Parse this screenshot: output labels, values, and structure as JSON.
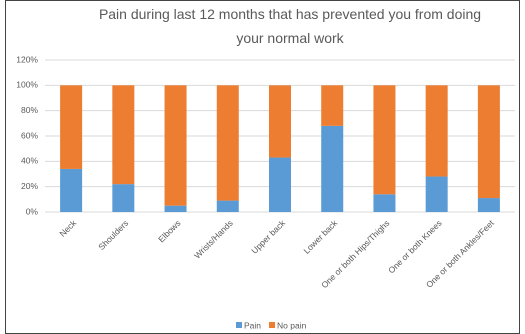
{
  "chart_data": {
    "type": "stacked_bar",
    "title": "Pain during last 12 months that has prevented you from doing your normal work",
    "categories": [
      "Neck",
      "Shoulders",
      "Elbows",
      "Wrists/Hands",
      "Upper back",
      "Lower back",
      "One or both Hips/Thighs",
      "One or both Knees",
      "One or both Ankles/Feet"
    ],
    "series": [
      {
        "name": "Pain",
        "color": "#5b9bd5",
        "values": [
          34,
          22,
          5,
          9,
          43,
          68,
          14,
          28,
          11
        ]
      },
      {
        "name": "No pain",
        "color": "#ed7d31",
        "values": [
          66,
          78,
          95,
          91,
          57,
          32,
          86,
          72,
          89
        ]
      }
    ],
    "ylim": [
      0,
      120
    ],
    "yticks": [
      {
        "value": 0,
        "label": "0%"
      },
      {
        "value": 20,
        "label": "20%"
      },
      {
        "value": 40,
        "label": "40%"
      },
      {
        "value": 60,
        "label": "60%"
      },
      {
        "value": 80,
        "label": "80%"
      },
      {
        "value": 100,
        "label": "100%"
      },
      {
        "value": 120,
        "label": "120%"
      }
    ],
    "grid": true,
    "legend": "bottom"
  }
}
